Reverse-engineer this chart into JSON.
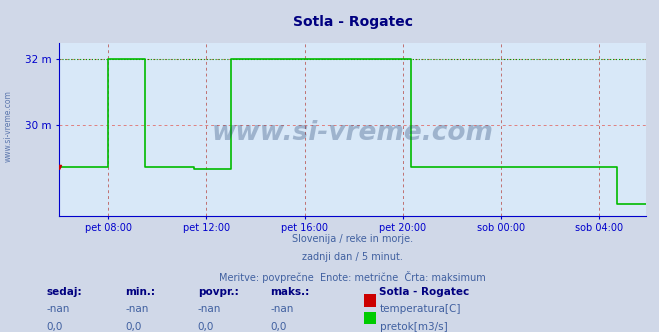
{
  "title": "Sotla - Rogatec",
  "title_color": "#000080",
  "background_color": "#d0d8e8",
  "plot_bg_color": "#d8e8f8",
  "grid_color_h": "#e08080",
  "grid_color_v": "#c07070",
  "axis_color": "#0000cc",
  "ylabel_color": "#0000cc",
  "xlabel_color": "#0000cc",
  "ylim": [
    27.2,
    32.5
  ],
  "xlim": [
    0,
    287
  ],
  "xtick_positions": [
    24,
    72,
    120,
    168,
    216,
    264
  ],
  "xtick_labels": [
    "pet 08:00",
    "pet 12:00",
    "pet 16:00",
    "pet 20:00",
    "sob 00:00",
    "sob 04:00"
  ],
  "line_color": "#00bb00",
  "dotted_line_color": "#009900",
  "watermark": "www.si-vreme.com",
  "watermark_color": "#1a3a6a",
  "sub_text1": "Slovenija / reke in morje.",
  "sub_text2": "zadnji dan / 5 minut.",
  "sub_text3": "Meritve: povprečne  Enote: metrične  Črta: maksimum",
  "sub_text_color": "#4060a0",
  "legend_title": "Sotla - Rogatec",
  "legend_title_color": "#000080",
  "legend_items": [
    "temperatura[C]",
    "pretok[m3/s]"
  ],
  "legend_colors": [
    "#cc0000",
    "#00cc00"
  ],
  "table_headers": [
    "sedaj:",
    "min.:",
    "povpr.:",
    "maks.:"
  ],
  "table_row1": [
    "-nan",
    "-nan",
    "-nan",
    "-nan"
  ],
  "table_row2": [
    "0,0",
    "0,0",
    "0,0",
    "0,0"
  ],
  "table_color": "#000080",
  "height_values": [
    28.7,
    28.7,
    28.7,
    28.7,
    28.7,
    28.7,
    28.7,
    28.7,
    28.7,
    28.7,
    28.7,
    28.7,
    28.7,
    28.7,
    28.7,
    28.7,
    28.7,
    28.7,
    28.7,
    28.7,
    28.7,
    28.7,
    28.7,
    28.7,
    32.0,
    32.0,
    32.0,
    32.0,
    32.0,
    32.0,
    32.0,
    32.0,
    32.0,
    32.0,
    32.0,
    32.0,
    32.0,
    32.0,
    32.0,
    32.0,
    32.0,
    32.0,
    28.7,
    28.7,
    28.7,
    28.7,
    28.7,
    28.7,
    28.7,
    28.7,
    28.7,
    28.7,
    28.7,
    28.7,
    28.7,
    28.7,
    28.7,
    28.7,
    28.7,
    28.7,
    28.7,
    28.7,
    28.7,
    28.7,
    28.7,
    28.7,
    28.65,
    28.65,
    28.65,
    28.65,
    28.65,
    28.65,
    28.65,
    28.65,
    28.65,
    28.65,
    28.65,
    28.65,
    28.65,
    28.65,
    28.65,
    28.65,
    28.65,
    28.65,
    32.0,
    32.0,
    32.0,
    32.0,
    32.0,
    32.0,
    32.0,
    32.0,
    32.0,
    32.0,
    32.0,
    32.0,
    32.0,
    32.0,
    32.0,
    32.0,
    32.0,
    32.0,
    32.0,
    32.0,
    32.0,
    32.0,
    32.0,
    32.0,
    32.0,
    32.0,
    32.0,
    32.0,
    32.0,
    32.0,
    32.0,
    32.0,
    32.0,
    32.0,
    32.0,
    32.0,
    32.0,
    32.0,
    32.0,
    32.0,
    32.0,
    32.0,
    32.0,
    32.0,
    32.0,
    32.0,
    32.0,
    32.0,
    32.0,
    32.0,
    32.0,
    32.0,
    32.0,
    32.0,
    32.0,
    32.0,
    32.0,
    32.0,
    32.0,
    32.0,
    32.0,
    32.0,
    32.0,
    32.0,
    32.0,
    32.0,
    32.0,
    32.0,
    32.0,
    32.0,
    32.0,
    32.0,
    32.0,
    32.0,
    32.0,
    32.0,
    32.0,
    32.0,
    32.0,
    32.0,
    32.0,
    32.0,
    32.0,
    32.0,
    32.0,
    32.0,
    32.0,
    32.0,
    28.7,
    28.7,
    28.7,
    28.7,
    28.7,
    28.7,
    28.7,
    28.7,
    28.7,
    28.7,
    28.7,
    28.7,
    28.7,
    28.7,
    28.7,
    28.7,
    28.7,
    28.7,
    28.7,
    28.7,
    28.7,
    28.7,
    28.7,
    28.7,
    28.7,
    28.7,
    28.7,
    28.7,
    28.7,
    28.7,
    28.7,
    28.7,
    28.7,
    28.7,
    28.7,
    28.7,
    28.7,
    28.7,
    28.7,
    28.7,
    28.7,
    28.7,
    28.7,
    28.7,
    28.7,
    28.7,
    28.7,
    28.7,
    28.7,
    28.7,
    28.7,
    28.7,
    28.7,
    28.7,
    28.7,
    28.7,
    28.7,
    28.7,
    28.7,
    28.7,
    28.7,
    28.7,
    28.7,
    28.7,
    28.7,
    28.7,
    28.7,
    28.7,
    28.7,
    28.7,
    28.7,
    28.7,
    28.7,
    28.7,
    28.7,
    28.7,
    28.7,
    28.7,
    28.7,
    28.7,
    28.7,
    28.7,
    28.7,
    28.7,
    28.7,
    28.7,
    28.7,
    28.7,
    28.7,
    28.7,
    28.7,
    28.7,
    28.7,
    28.7,
    28.7,
    28.7,
    28.7,
    28.7,
    28.7,
    28.7,
    28.7,
    27.55,
    27.55,
    27.55,
    27.55,
    27.55,
    27.55,
    27.55,
    27.55,
    27.55,
    27.55,
    27.55,
    27.55,
    27.55,
    27.55,
    27.55,
    27.55,
    27.55,
    27.55
  ]
}
